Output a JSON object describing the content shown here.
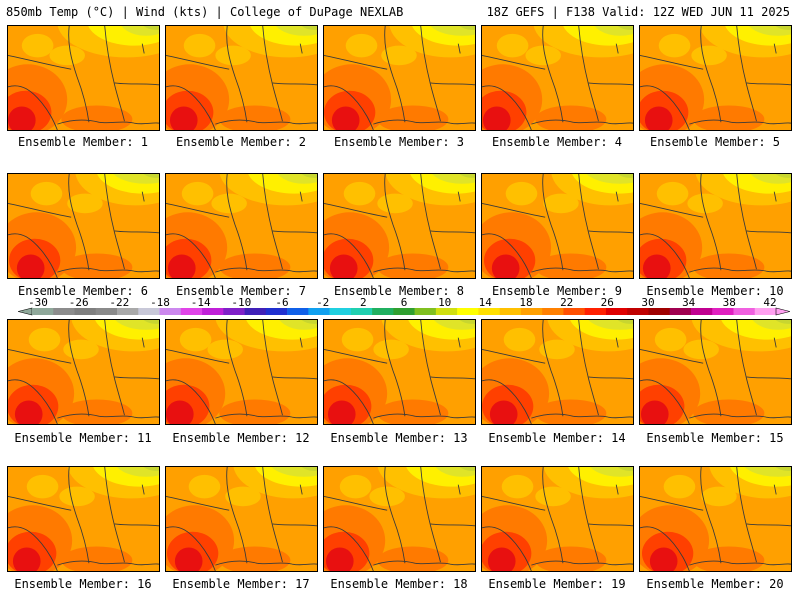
{
  "header": {
    "left_title": "850mb Temp (°C) | Wind (kts) | College of DuPage NEXLAB",
    "right_title": "18Z GEFS | F138 Valid: 12Z WED JUN 11 2025"
  },
  "members": [
    {
      "label": "Ensemble Member: 1"
    },
    {
      "label": "Ensemble Member: 2"
    },
    {
      "label": "Ensemble Member: 3"
    },
    {
      "label": "Ensemble Member: 4"
    },
    {
      "label": "Ensemble Member: 5"
    },
    {
      "label": "Ensemble Member: 6"
    },
    {
      "label": "Ensemble Member: 7"
    },
    {
      "label": "Ensemble Member: 8"
    },
    {
      "label": "Ensemble Member: 9"
    },
    {
      "label": "Ensemble Member: 10"
    },
    {
      "label": "Ensemble Member: 11"
    },
    {
      "label": "Ensemble Member: 12"
    },
    {
      "label": "Ensemble Member: 13"
    },
    {
      "label": "Ensemble Member: 14"
    },
    {
      "label": "Ensemble Member: 15"
    },
    {
      "label": "Ensemble Member: 16"
    },
    {
      "label": "Ensemble Member: 17"
    },
    {
      "label": "Ensemble Member: 18"
    },
    {
      "label": "Ensemble Member: 19"
    },
    {
      "label": "Ensemble Member: 20"
    }
  ],
  "colorbar": {
    "labels": [
      "-30",
      "-26",
      "-22",
      "-18",
      "-14",
      "-10",
      "-6",
      "-2",
      "2",
      "6",
      "10",
      "14",
      "18",
      "22",
      "26",
      "30",
      "34",
      "38",
      "42"
    ],
    "colors": [
      "#8fa89a",
      "#8c8c8c",
      "#7f7f7f",
      "#8a8a8a",
      "#a9a9a9",
      "#c8c8d8",
      "#cc88ee",
      "#e044e8",
      "#c020d8",
      "#8020c8",
      "#4020b8",
      "#2030d0",
      "#1060e8",
      "#10a0f0",
      "#20d0e0",
      "#20d0b0",
      "#20b060",
      "#30a030",
      "#80c020",
      "#d0e010",
      "#ffff00",
      "#ffe000",
      "#ffc000",
      "#ffa000",
      "#ff8000",
      "#ff5000",
      "#ff2000",
      "#e00000",
      "#c00000",
      "#a00000",
      "#a00050",
      "#c00090",
      "#e020c0",
      "#f060e0",
      "#ffa0f0"
    ]
  },
  "palette": {
    "green": "#c8d630",
    "light_green": "#e0e428",
    "yellow": "#fff000",
    "light_orange": "#ffc000",
    "orange": "#ffa000",
    "dark_orange": "#ff7a00",
    "red_orange": "#ff4000",
    "red": "#e81010",
    "line": "#3a3a3a"
  }
}
